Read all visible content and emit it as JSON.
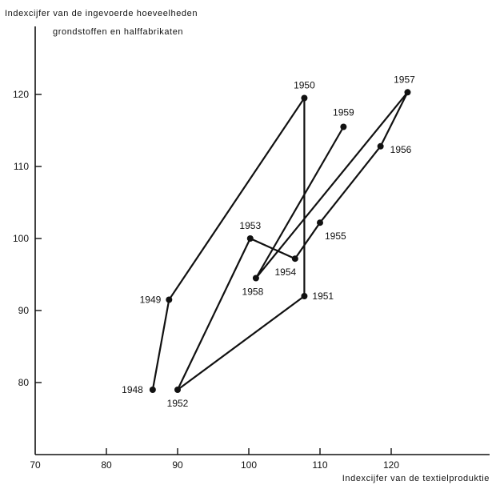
{
  "chart_data": {
    "type": "scatter",
    "title": "",
    "ylabel_lines": [
      "Indexcijfer van de ingevoerde hoeveelheden",
      "grondstoffen en halffabrikaten"
    ],
    "xlabel": "Indexcijfer van de textielproduktie",
    "origin_label": "70",
    "xlim": [
      70,
      130
    ],
    "ylim": [
      70,
      130
    ],
    "x_ticks": [
      80,
      90,
      100,
      110,
      120
    ],
    "y_ticks": [
      80,
      90,
      100,
      110,
      120
    ],
    "grid": false,
    "connected": true,
    "series": [
      {
        "points": [
          {
            "label": "1948",
            "x": 86.5,
            "y": 79
          },
          {
            "label": "1949",
            "x": 88.8,
            "y": 91.5
          },
          {
            "label": "1950",
            "x": 107.8,
            "y": 119.5
          },
          {
            "label": "1951",
            "x": 107.8,
            "y": 92
          },
          {
            "label": "1952",
            "x": 90,
            "y": 79
          },
          {
            "label": "1953",
            "x": 100.2,
            "y": 100
          },
          {
            "label": "1954",
            "x": 106.5,
            "y": 97.2
          },
          {
            "label": "1955",
            "x": 110,
            "y": 102.2
          },
          {
            "label": "1956",
            "x": 118.5,
            "y": 112.8
          },
          {
            "label": "1957",
            "x": 122.3,
            "y": 120.3
          },
          {
            "label": "1958",
            "x": 101,
            "y": 94.5
          },
          {
            "label": "1959",
            "x": 113.3,
            "y": 115.5
          }
        ]
      }
    ]
  }
}
